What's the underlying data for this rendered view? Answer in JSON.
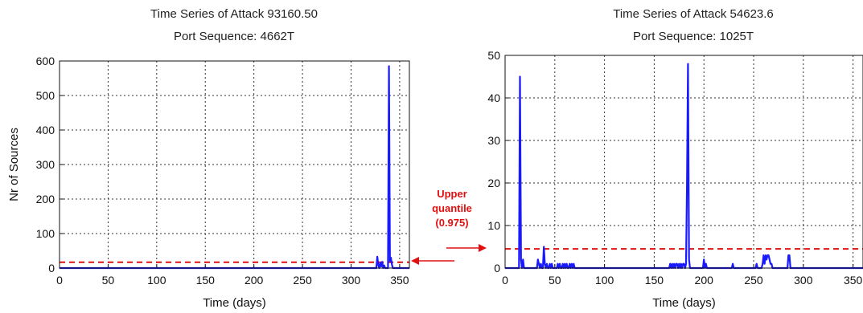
{
  "chart_data": [
    {
      "type": "line",
      "title": "Time Series of Attack 93160.50",
      "subtitle": "Port Sequence: 4662T",
      "xlabel": "Time (days)",
      "ylabel": "Nr of Sources",
      "xlim": [
        0,
        360
      ],
      "ylim": [
        0,
        600
      ],
      "xticks": [
        0,
        50,
        100,
        150,
        200,
        250,
        300,
        350
      ],
      "yticks": [
        0,
        100,
        200,
        300,
        400,
        500,
        600
      ],
      "grid": true,
      "series": [
        {
          "color": "#1a1aff",
          "x": [
            0,
            326,
            327,
            328,
            329,
            330,
            331,
            332,
            333,
            334,
            335,
            336,
            337,
            338,
            339,
            340,
            341,
            342,
            343,
            344,
            360
          ],
          "y": [
            0,
            0,
            33,
            10,
            0,
            15,
            5,
            18,
            0,
            8,
            0,
            0,
            0,
            0,
            585,
            20,
            30,
            10,
            0,
            0,
            0
          ]
        }
      ],
      "threshold": {
        "y": 17,
        "color": "#e01010",
        "style": "dashed"
      }
    },
    {
      "type": "line",
      "title": "Time Series of Attack 54623.6",
      "subtitle": "Port Sequence: 1025T",
      "xlabel": "Time (days)",
      "ylabel": "",
      "xlim": [
        0,
        360
      ],
      "ylim": [
        0,
        50
      ],
      "xticks": [
        0,
        50,
        100,
        150,
        200,
        250,
        300,
        350
      ],
      "yticks": [
        0,
        10,
        20,
        30,
        40,
        50
      ],
      "grid": true,
      "series": [
        {
          "color": "#1a1aff",
          "x": [
            0,
            14,
            15,
            16,
            17,
            18,
            19,
            20,
            32,
            33,
            34,
            35,
            36,
            37,
            38,
            39,
            40,
            41,
            42,
            43,
            44,
            45,
            46,
            47,
            48,
            52,
            53,
            54,
            55,
            56,
            57,
            58,
            59,
            60,
            61,
            62,
            63,
            64,
            65,
            66,
            67,
            68,
            69,
            70,
            71,
            165,
            166,
            167,
            168,
            169,
            170,
            171,
            172,
            173,
            174,
            175,
            176,
            177,
            178,
            179,
            180,
            181,
            182,
            183,
            184,
            185,
            186,
            187,
            188,
            199,
            200,
            201,
            202,
            203,
            204,
            228,
            229,
            230,
            252,
            253,
            254,
            258,
            259,
            260,
            261,
            262,
            263,
            264,
            265,
            266,
            267,
            268,
            269,
            270,
            284,
            285,
            286,
            287,
            288,
            360
          ],
          "y": [
            0,
            0,
            45,
            2,
            0,
            2,
            0,
            0,
            0,
            2,
            1,
            0,
            1,
            0,
            0,
            5,
            1,
            0,
            1,
            0,
            0,
            1,
            0,
            1,
            0,
            0,
            1,
            0,
            1,
            0,
            0,
            1,
            0,
            1,
            0,
            1,
            0,
            0,
            1,
            0,
            1,
            0,
            1,
            0,
            0,
            0,
            1,
            0,
            1,
            0,
            1,
            0,
            1,
            1,
            0,
            1,
            0,
            1,
            0,
            1,
            1,
            0,
            1,
            20,
            48,
            2,
            0,
            0,
            0,
            0,
            2,
            0,
            1,
            0,
            0,
            0,
            1,
            0,
            0,
            1,
            0,
            0,
            1,
            3,
            1,
            3,
            2,
            3,
            3,
            2,
            1,
            1,
            0,
            0,
            0,
            3,
            3,
            0,
            0,
            0
          ]
        }
      ],
      "threshold": {
        "y": 4.5,
        "color": "#e01010",
        "style": "dashed"
      }
    }
  ],
  "annotation": {
    "line1": "Upper",
    "line2": "quantile",
    "line3": "(0.975)",
    "color": "#e01010"
  }
}
